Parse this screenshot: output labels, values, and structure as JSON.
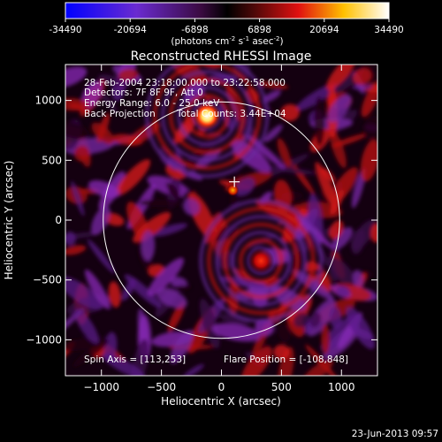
{
  "colorbar": {
    "tick_labels": [
      "-34490",
      "-20694",
      "-6898",
      "6898",
      "20694",
      "34490"
    ],
    "range": [
      -34490,
      34490
    ],
    "units": "(photons cm",
    "units_sup1": "-2",
    "units_mid": " s",
    "units_sup2": "-1",
    "units_end": " asec",
    "units_sup3": "-2",
    "units_close": ")"
  },
  "chart_data": {
    "type": "heatmap",
    "title": "Reconstructed RHESSI Image",
    "xlabel": "Heliocentric X (arcsec)",
    "ylabel": "Heliocentric Y (arcsec)",
    "xlim": [
      -1300,
      1300
    ],
    "ylim": [
      -1300,
      1300
    ],
    "xticks": [
      -1000,
      -500,
      0,
      500,
      1000
    ],
    "yticks": [
      -1000,
      -500,
      0,
      500,
      1000
    ],
    "xtick_labels": [
      "−1000",
      "−500",
      "0",
      "500",
      "1000"
    ],
    "ytick_labels": [
      "−1000",
      "−500",
      "0",
      "500",
      "1000"
    ],
    "solar_limb_radius": 985,
    "sources": [
      {
        "x": -120,
        "y": 870,
        "value": 34490
      },
      {
        "x": 330,
        "y": -340,
        "value": 24000
      },
      {
        "x": 95,
        "y": 250,
        "value": 20000
      }
    ],
    "marker": {
      "x": 108,
      "y": 320
    },
    "colormap": [
      "#0000ff",
      "#9b30c0",
      "#000000",
      "#e01010",
      "#ffd000",
      "#ffffff"
    ]
  },
  "annotations": {
    "time_range": "28-Feb-2004 23:18:00.000 to 23:22:58.000",
    "detectors": "Detectors: 7F 8F 9F, Att 0",
    "energy": "Energy Range: 6.0 - 25.0 keV",
    "method": "Back Projection",
    "counts": "Total Counts: 3.44E+04",
    "spin_axis": "Spin Axis = [113,253]",
    "flare_position": "Flare Position = [-108,848]"
  },
  "footer": {
    "date": "23-Jun-2013 09:57"
  }
}
